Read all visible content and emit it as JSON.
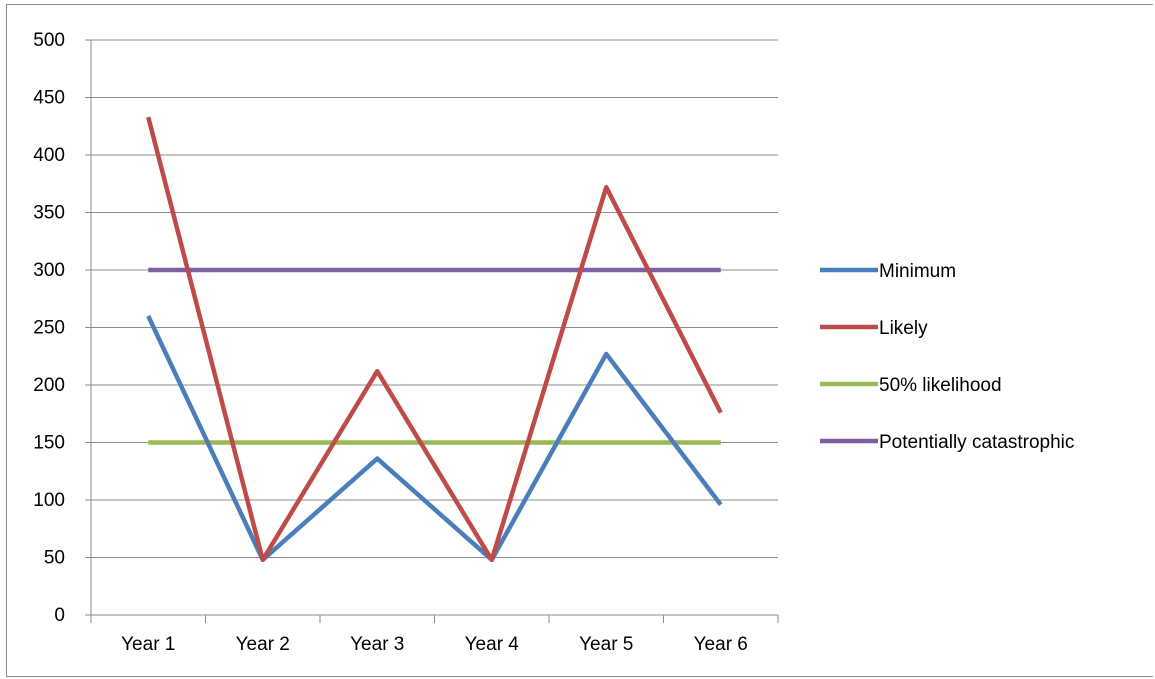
{
  "chart_data": {
    "type": "line",
    "title": "",
    "xlabel": "",
    "ylabel": "",
    "categories": [
      "Year 1",
      "Year 2",
      "Year 3",
      "Year 4",
      "Year 5",
      "Year 6"
    ],
    "ylim": [
      0,
      500
    ],
    "yticks": [
      "0",
      "50",
      "100",
      "150",
      "200",
      "250",
      "300",
      "350",
      "400",
      "450",
      "500"
    ],
    "grid": "horizontal",
    "legend_position": "right",
    "series": [
      {
        "name": "Minimum",
        "color": "#4a7ebb",
        "values": [
          260,
          48,
          136,
          48,
          227,
          96
        ]
      },
      {
        "name": "Likely",
        "color": "#be4b48",
        "values": [
          433,
          48,
          212,
          48,
          372,
          176
        ]
      },
      {
        "name": "50% likelihood",
        "color": "#98b954",
        "values": [
          150,
          150,
          150,
          150,
          150,
          150
        ]
      },
      {
        "name": "Potentially catastrophic",
        "color": "#7d60a0",
        "values": [
          300,
          300,
          300,
          300,
          300,
          300
        ]
      }
    ]
  }
}
